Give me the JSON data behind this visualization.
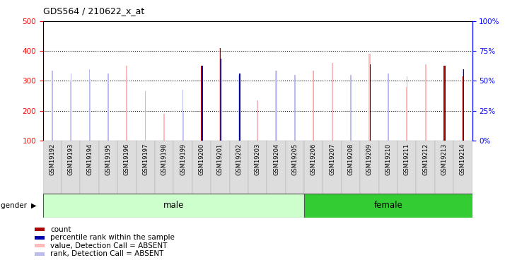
{
  "title": "GDS564 / 210622_x_at",
  "samples": [
    "GSM19192",
    "GSM19193",
    "GSM19194",
    "GSM19195",
    "GSM19196",
    "GSM19197",
    "GSM19198",
    "GSM19199",
    "GSM19200",
    "GSM19201",
    "GSM19202",
    "GSM19203",
    "GSM19204",
    "GSM19205",
    "GSM19206",
    "GSM19207",
    "GSM19208",
    "GSM19209",
    "GSM19210",
    "GSM19211",
    "GSM19212",
    "GSM19213",
    "GSM19214"
  ],
  "value_absent": [
    325,
    300,
    305,
    285,
    350,
    null,
    190,
    195,
    350,
    410,
    320,
    235,
    335,
    290,
    335,
    360,
    265,
    390,
    280,
    280,
    355,
    350,
    315
  ],
  "rank_absent": [
    335,
    325,
    340,
    325,
    315,
    265,
    null,
    270,
    null,
    370,
    null,
    null,
    335,
    320,
    335,
    null,
    320,
    null,
    325,
    315,
    null,
    345,
    340
  ],
  "count_value": [
    null,
    null,
    null,
    null,
    null,
    null,
    null,
    null,
    350,
    410,
    null,
    null,
    null,
    null,
    null,
    null,
    null,
    null,
    null,
    null,
    null,
    350,
    315
  ],
  "percentile_value": [
    null,
    null,
    null,
    null,
    null,
    null,
    null,
    null,
    350,
    375,
    325,
    null,
    null,
    null,
    null,
    null,
    null,
    355,
    null,
    null,
    null,
    350,
    340
  ],
  "num_male": 14,
  "num_female": 9,
  "ymin": 100,
  "ymax": 500,
  "yleft_ticks": [
    100,
    200,
    300,
    400,
    500
  ],
  "yright_ticks": [
    0,
    25,
    50,
    75,
    100
  ],
  "color_count": "#aa0000",
  "color_percentile": "#0000aa",
  "color_value_absent": "#ffbbbb",
  "color_rank_absent": "#bbbbee",
  "bg_color": "#ffffff",
  "male_bg": "#ccffcc",
  "female_bg": "#33cc33",
  "legend_items": [
    {
      "color": "#aa0000",
      "label": "count"
    },
    {
      "color": "#0000aa",
      "label": "percentile rank within the sample"
    },
    {
      "color": "#ffbbbb",
      "label": "value, Detection Call = ABSENT"
    },
    {
      "color": "#bbbbee",
      "label": "rank, Detection Call = ABSENT"
    }
  ]
}
